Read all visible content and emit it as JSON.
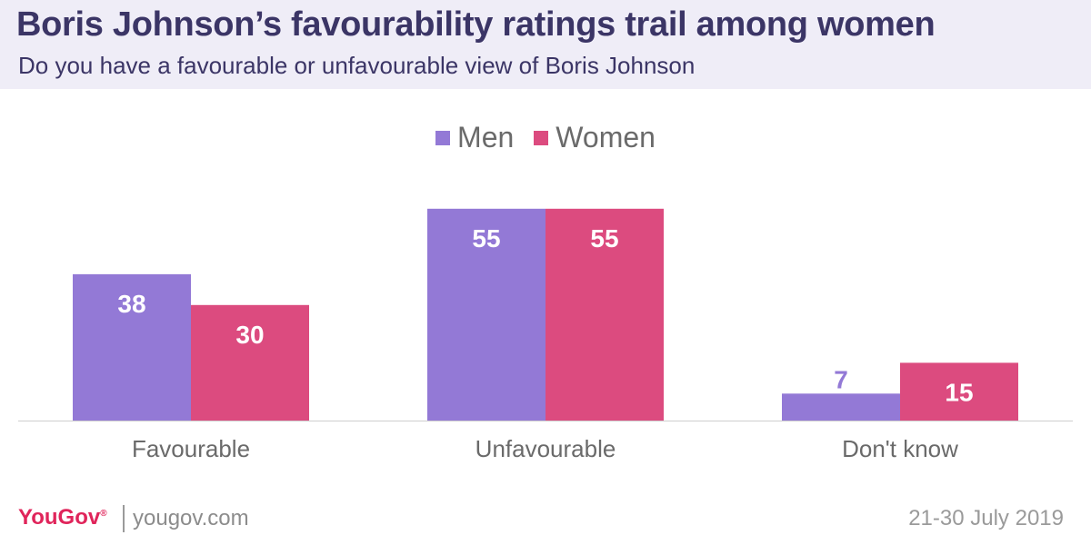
{
  "header": {
    "title": "Boris Johnson’s favourability ratings trail among women",
    "subtitle": "Do you have a favourable or unfavourable view of Boris Johnson"
  },
  "legend": {
    "items": [
      {
        "label": "Men",
        "color": "#9379d6"
      },
      {
        "label": "Women",
        "color": "#dc4b7f"
      }
    ]
  },
  "chart_data": {
    "type": "bar",
    "title": "Boris Johnson’s favourability ratings trail among women",
    "subtitle": "Do you have a favourable or unfavourable view of Boris Johnson",
    "categories": [
      "Favourable",
      "Unfavourable",
      "Don't know"
    ],
    "series": [
      {
        "name": "Men",
        "values": [
          38,
          55,
          7
        ],
        "color": "#9379d6",
        "label_color": "#ffffff"
      },
      {
        "name": "Women",
        "values": [
          30,
          55,
          15
        ],
        "color": "#dc4b7f",
        "label_color": "#ffffff"
      }
    ],
    "ylim": [
      0,
      60
    ],
    "grid": false,
    "legend_position": "top-center",
    "data_labels": true
  },
  "footer": {
    "brand": "YouGov",
    "site": "yougov.com",
    "date": "21-30 July 2019"
  }
}
